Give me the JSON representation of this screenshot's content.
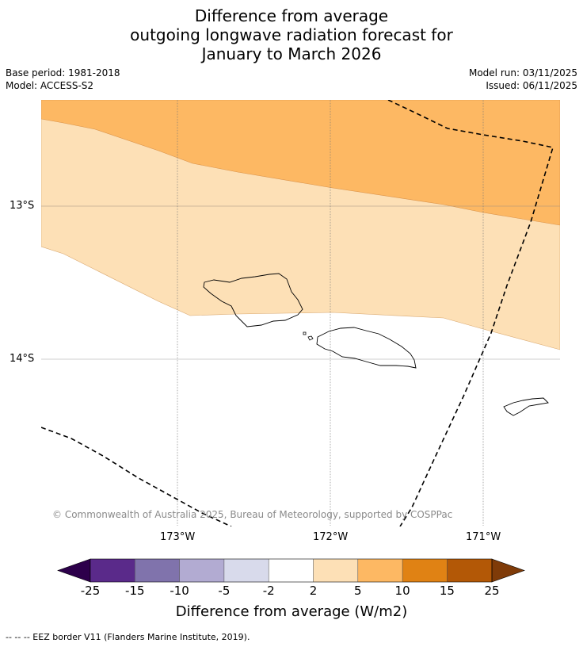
{
  "title": {
    "line1": "Difference from average",
    "line2": "outgoing longwave radiation forecast for",
    "line3": "January to March 2026"
  },
  "meta": {
    "base_period": "Base period: 1981-2018",
    "model": "Model: ACCESS-S2",
    "model_run": "Model run: 03/11/2025",
    "issued": "Issued: 06/11/2025"
  },
  "map": {
    "lat_labels": [
      "13°S",
      "14°S"
    ],
    "lon_labels": [
      "173°W",
      "172°W",
      "171°W"
    ],
    "copyright": "© Commonwealth of Australia 2025, Bureau of Meteorology, supported by COSPPac",
    "colors": {
      "band_5_10": "#fdb863",
      "band_2_5": "#fde0b6",
      "background": "#ffffff",
      "coast": "#000000"
    }
  },
  "colorbar": {
    "ticks": [
      "-25",
      "-15",
      "-10",
      "-5",
      "-2",
      "2",
      "5",
      "10",
      "15",
      "25"
    ],
    "colors": [
      "#5a2a8a",
      "#8073ac",
      "#b2abd2",
      "#d8daeb",
      "#ffffff",
      "#fde0b6",
      "#fdb863",
      "#e08214",
      "#b35806"
    ],
    "under_color": "#2d004b",
    "over_color": "#7f3b08",
    "label": "Difference from average (W/m2)"
  },
  "footnote": "--  --  -- EEZ border V11 (Flanders Marine Institute, 2019)."
}
